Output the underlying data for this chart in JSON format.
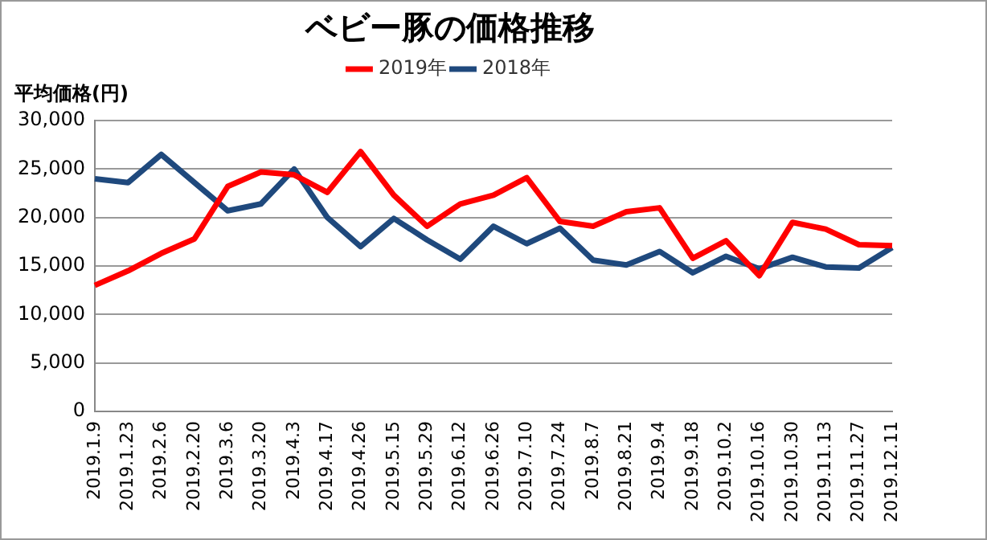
{
  "chart_data": {
    "type": "line",
    "title": "ベビー豚の価格推移",
    "ylabel": "平均価格(円)",
    "categories": [
      "2019.1.9",
      "2019.1.23",
      "2019.2.6",
      "2019.2.20",
      "2019.3.6",
      "2019.3.20",
      "2019.4.3",
      "2019.4.17",
      "2019.4.26",
      "2019.5.15",
      "2019.5.29",
      "2019.6.12",
      "2019.6.26",
      "2019.7.10",
      "2019.7.24",
      "2019.8.7",
      "2019.8.21",
      "2019.9.4",
      "2019.9.18",
      "2019.10.2",
      "2019.10.16",
      "2019.10.30",
      "2019.11.13",
      "2019.11.27",
      "2019.12.11"
    ],
    "series": [
      {
        "name": "2019年",
        "color": "#ff0000",
        "values": [
          13000,
          14500,
          16300,
          17800,
          23200,
          24700,
          24400,
          22600,
          26800,
          22300,
          19100,
          21400,
          22300,
          24100,
          19600,
          19100,
          20600,
          21000,
          15800,
          17600,
          14000,
          19500,
          18800,
          17200,
          17100
        ]
      },
      {
        "name": "2018年",
        "color": "#1f497d",
        "values": [
          24000,
          23600,
          26500,
          23600,
          20700,
          21400,
          25000,
          20000,
          17000,
          19900,
          17700,
          15700,
          19100,
          17300,
          18900,
          15600,
          15100,
          16500,
          14300,
          16000,
          14700,
          15900,
          14900,
          14800,
          16900
        ]
      }
    ],
    "ylim": [
      0,
      30000
    ],
    "yticks": [
      0,
      {
        "value": 5000,
        "label": "5,000"
      },
      {
        "value": 10000,
        "label": "10,000"
      },
      {
        "value": 15000,
        "label": "15,000"
      },
      {
        "value": 20000,
        "label": "20,000"
      },
      {
        "value": 25000,
        "label": "25,000"
      },
      {
        "value": 30000,
        "label": "30,000"
      }
    ],
    "grid": "y",
    "legend": "top",
    "marker": "none",
    "line_style": "solid"
  }
}
